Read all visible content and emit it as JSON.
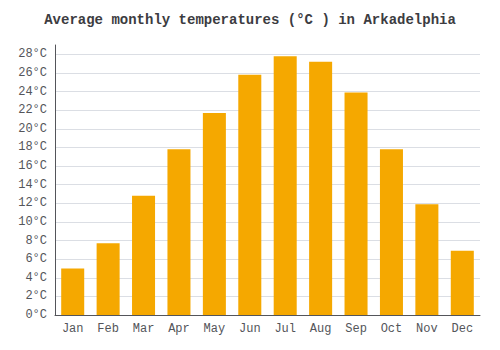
{
  "chart_data": {
    "type": "bar",
    "title": "Average monthly temperatures (°C ) in Arkadelphia",
    "categories": [
      "Jan",
      "Feb",
      "Mar",
      "Apr",
      "May",
      "Jun",
      "Jul",
      "Aug",
      "Sep",
      "Oct",
      "Nov",
      "Dec"
    ],
    "values": [
      5.0,
      7.7,
      12.8,
      17.8,
      21.7,
      25.8,
      27.8,
      27.2,
      23.9,
      17.8,
      11.9,
      6.9
    ],
    "color": "#F5A800",
    "ylim": [
      0,
      29
    ],
    "yticks": [
      {
        "value": 0,
        "label": "0°C"
      },
      {
        "value": 2,
        "label": "2°C"
      },
      {
        "value": 4,
        "label": "4°C"
      },
      {
        "value": 6,
        "label": "6°C"
      },
      {
        "value": 8,
        "label": "8°C"
      },
      {
        "value": 10,
        "label": "10°C"
      },
      {
        "value": 12,
        "label": "12°C"
      },
      {
        "value": 14,
        "label": "14°C"
      },
      {
        "value": 16,
        "label": "16°C"
      },
      {
        "value": 18,
        "label": "18°C"
      },
      {
        "value": 20,
        "label": "20°C"
      },
      {
        "value": 22,
        "label": "22°C"
      },
      {
        "value": 24,
        "label": "24°C"
      },
      {
        "value": 26,
        "label": "26°C"
      },
      {
        "value": 28,
        "label": "28°C"
      }
    ],
    "grid": true
  }
}
